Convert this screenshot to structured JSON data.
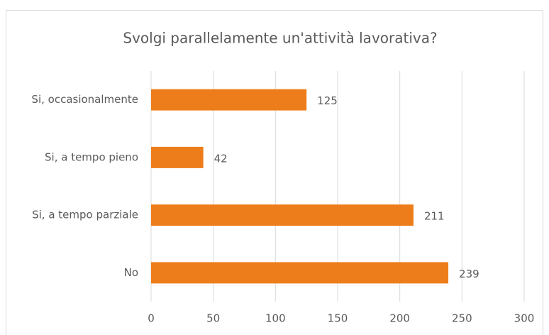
{
  "chart_data": {
    "type": "hbar",
    "title": "Svolgi parallelamente un'attività lavorativa?",
    "categories": [
      "Si, occasionalmente",
      "Si, a tempo pieno",
      "Si, a tempo parziale",
      "No"
    ],
    "values": [
      125,
      42,
      211,
      239
    ],
    "color": "#ed7d1a",
    "xlim": [
      0,
      300
    ],
    "xticks": [
      0,
      50,
      100,
      150,
      200,
      250,
      300
    ],
    "grid": true
  }
}
